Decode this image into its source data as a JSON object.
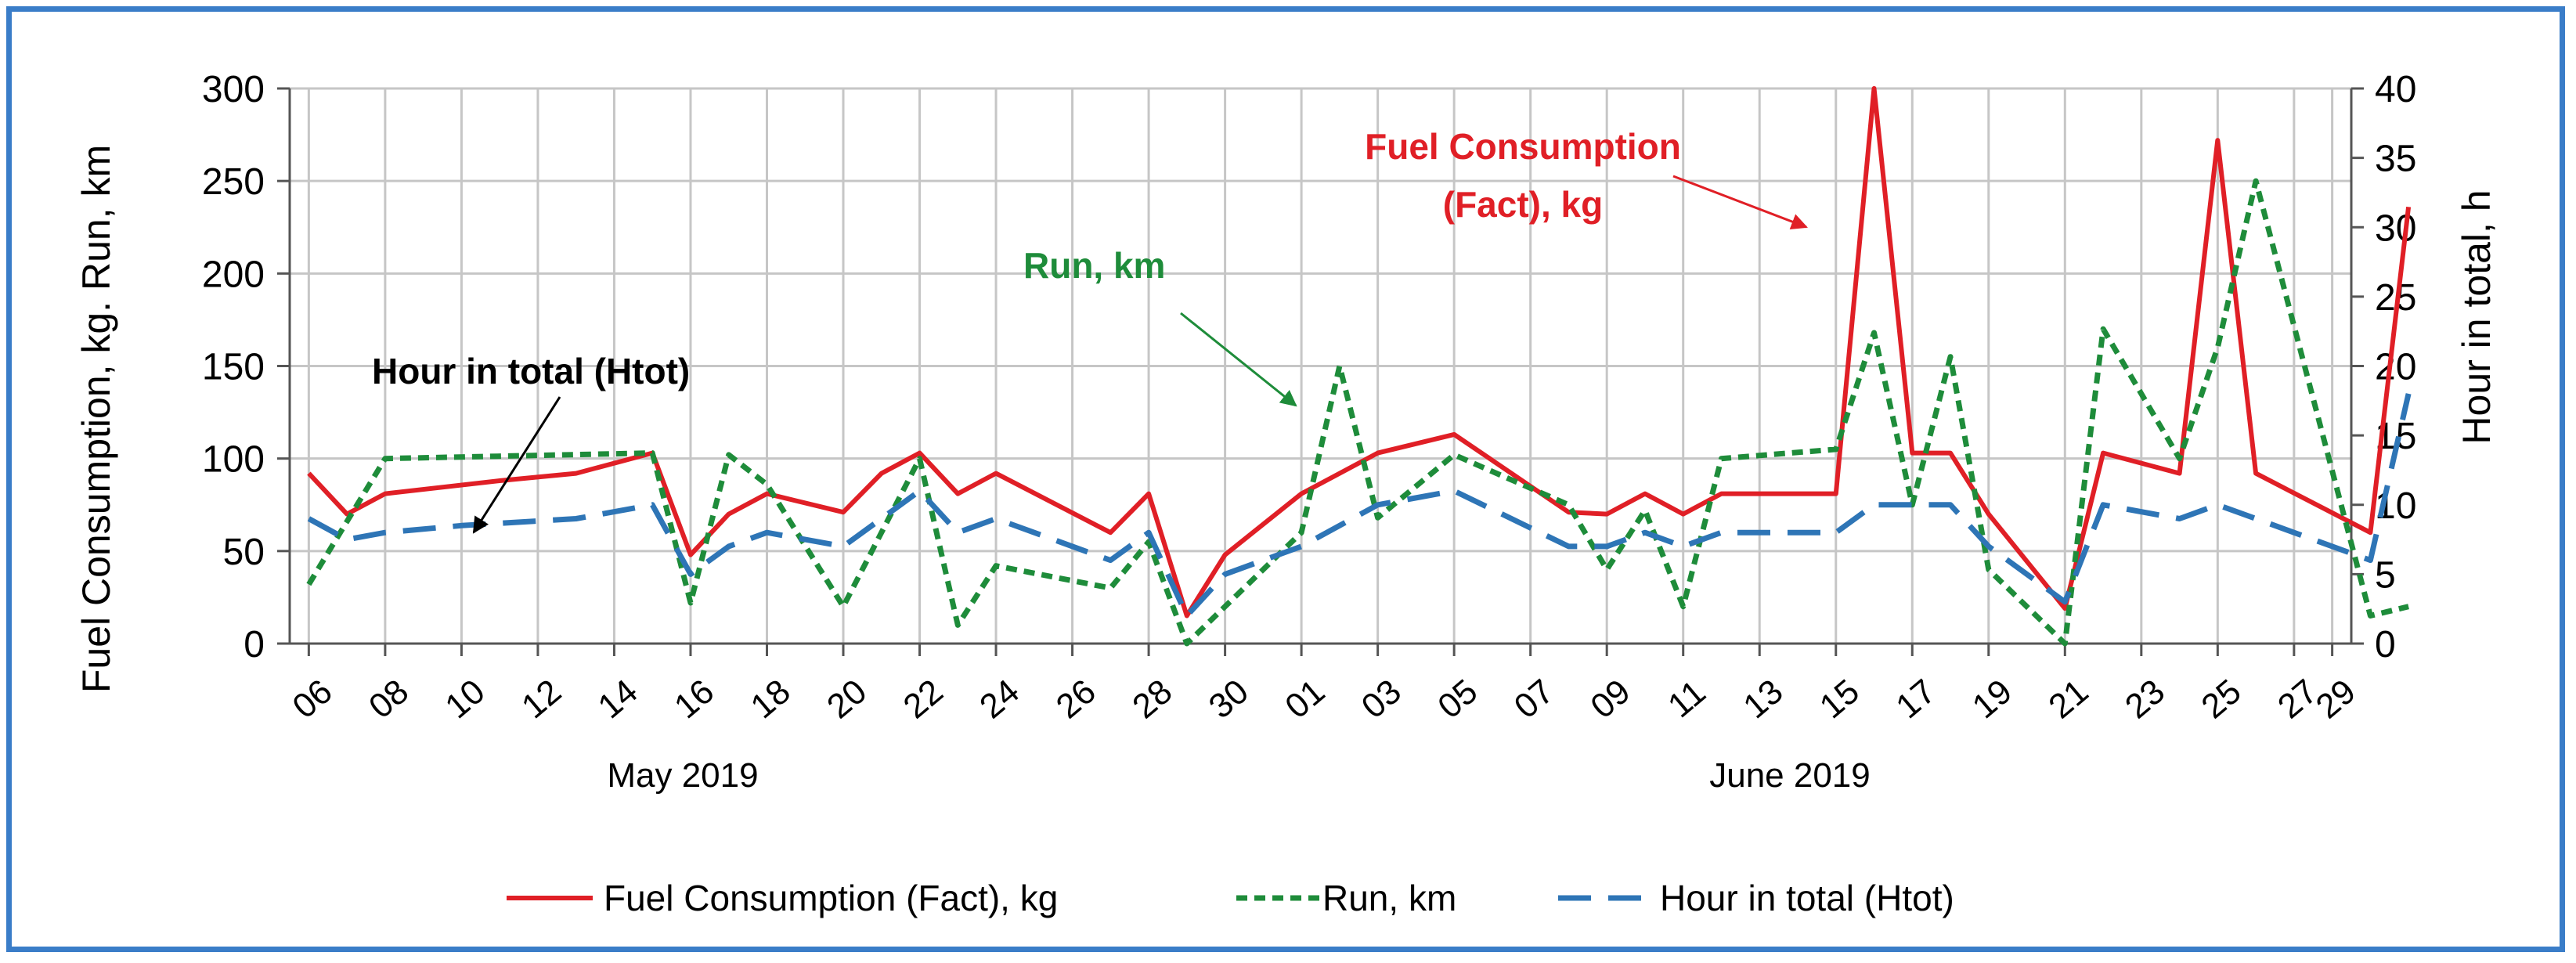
{
  "chart_data": {
    "type": "line",
    "title": "",
    "ylabel_left": "Fuel Consumption, kg. Run, km",
    "ylabel_right": "Hour in total, h",
    "ylim_left": [
      0,
      300
    ],
    "ylim_right": [
      0,
      40
    ],
    "yticks_left": [
      0,
      50,
      100,
      150,
      200,
      250,
      300
    ],
    "yticks_right": [
      0,
      5,
      10,
      15,
      20,
      25,
      30,
      35,
      40
    ],
    "x_index_range": [
      -0.5,
      53.5
    ],
    "xticks": [
      {
        "i": 0,
        "label": "06"
      },
      {
        "i": 2,
        "label": "08"
      },
      {
        "i": 4,
        "label": "10"
      },
      {
        "i": 6,
        "label": "12"
      },
      {
        "i": 8,
        "label": "14"
      },
      {
        "i": 10,
        "label": "16"
      },
      {
        "i": 12,
        "label": "18"
      },
      {
        "i": 14,
        "label": "20"
      },
      {
        "i": 16,
        "label": "22"
      },
      {
        "i": 18,
        "label": "24"
      },
      {
        "i": 20,
        "label": "26"
      },
      {
        "i": 22,
        "label": "28"
      },
      {
        "i": 24,
        "label": "30"
      },
      {
        "i": 26,
        "label": "01"
      },
      {
        "i": 28,
        "label": "03"
      },
      {
        "i": 30,
        "label": "05"
      },
      {
        "i": 32,
        "label": "07"
      },
      {
        "i": 34,
        "label": "09"
      },
      {
        "i": 36,
        "label": "11"
      },
      {
        "i": 38,
        "label": "13"
      },
      {
        "i": 40,
        "label": "15"
      },
      {
        "i": 42,
        "label": "17"
      },
      {
        "i": 44,
        "label": "19"
      },
      {
        "i": 46,
        "label": "21"
      },
      {
        "i": 48,
        "label": "23"
      },
      {
        "i": 50,
        "label": "25"
      },
      {
        "i": 52,
        "label": "27"
      },
      {
        "i": 53,
        "label": "29"
      }
    ],
    "month_labels": [
      {
        "i": 10,
        "label": "May 2019"
      },
      {
        "i": 39,
        "label": "June 2019"
      }
    ],
    "series": [
      {
        "name": "Fuel Consumption (Fact), kg",
        "axis": "left",
        "color": "#e01f26",
        "dash": "solid",
        "points": [
          [
            0,
            92
          ],
          [
            1,
            70
          ],
          [
            2,
            81
          ],
          [
            5,
            88
          ],
          [
            7,
            92
          ],
          [
            9,
            103
          ],
          [
            10,
            48
          ],
          [
            11,
            70
          ],
          [
            12,
            81
          ],
          [
            14,
            71
          ],
          [
            15,
            92
          ],
          [
            16,
            103
          ],
          [
            17,
            81
          ],
          [
            18,
            92
          ],
          [
            21,
            60
          ],
          [
            22,
            81
          ],
          [
            23,
            15
          ],
          [
            24,
            48
          ],
          [
            26,
            81
          ],
          [
            27,
            92
          ],
          [
            28,
            103
          ],
          [
            30,
            113
          ],
          [
            33,
            71
          ],
          [
            34,
            70
          ],
          [
            35,
            81
          ],
          [
            36,
            70
          ],
          [
            37,
            81
          ],
          [
            40,
            81
          ],
          [
            41,
            300
          ],
          [
            42,
            103
          ],
          [
            43,
            103
          ],
          [
            44,
            70
          ],
          [
            46,
            19
          ],
          [
            47,
            103
          ],
          [
            49,
            92
          ],
          [
            50,
            272
          ],
          [
            51,
            92
          ],
          [
            54,
            60
          ],
          [
            55,
            236
          ]
        ]
      },
      {
        "name": "Run, km",
        "axis": "left",
        "color": "#1e8c3a",
        "dash": "short-dash",
        "points": [
          [
            0,
            32
          ],
          [
            2,
            100
          ],
          [
            9,
            103
          ],
          [
            10,
            22
          ],
          [
            11,
            102
          ],
          [
            12,
            86
          ],
          [
            14,
            20
          ],
          [
            16,
            100
          ],
          [
            17,
            10
          ],
          [
            18,
            42
          ],
          [
            21,
            30
          ],
          [
            22,
            55
          ],
          [
            23,
            0
          ],
          [
            26,
            60
          ],
          [
            27,
            150
          ],
          [
            28,
            68
          ],
          [
            30,
            102
          ],
          [
            33,
            75
          ],
          [
            34,
            40
          ],
          [
            35,
            72
          ],
          [
            36,
            20
          ],
          [
            37,
            100
          ],
          [
            40,
            105
          ],
          [
            41,
            168
          ],
          [
            42,
            75
          ],
          [
            43,
            155
          ],
          [
            44,
            40
          ],
          [
            46,
            0
          ],
          [
            47,
            170
          ],
          [
            49,
            100
          ],
          [
            50,
            160
          ],
          [
            51,
            250
          ],
          [
            54,
            15
          ],
          [
            55,
            20
          ]
        ]
      },
      {
        "name": "Hour   in total (Htot)",
        "axis": "right",
        "color": "#2e75b6",
        "dash": "long-dash",
        "points": [
          [
            0,
            9
          ],
          [
            1,
            7.5
          ],
          [
            2,
            8
          ],
          [
            4,
            8.5
          ],
          [
            7,
            9
          ],
          [
            9,
            10
          ],
          [
            10,
            5
          ],
          [
            11,
            7
          ],
          [
            12,
            8
          ],
          [
            14,
            7
          ],
          [
            16,
            11
          ],
          [
            17,
            8
          ],
          [
            18,
            9
          ],
          [
            21,
            6
          ],
          [
            22,
            8
          ],
          [
            23,
            2
          ],
          [
            24,
            5
          ],
          [
            26,
            7
          ],
          [
            28,
            10
          ],
          [
            30,
            11
          ],
          [
            33,
            7
          ],
          [
            34,
            7
          ],
          [
            35,
            8
          ],
          [
            36,
            7
          ],
          [
            37,
            8
          ],
          [
            40,
            8
          ],
          [
            41,
            10
          ],
          [
            42,
            10
          ],
          [
            43,
            10
          ],
          [
            44,
            7
          ],
          [
            46,
            3
          ],
          [
            47,
            10
          ],
          [
            49,
            9
          ],
          [
            50,
            10
          ],
          [
            51,
            9
          ],
          [
            54,
            6
          ],
          [
            55,
            18
          ]
        ]
      }
    ],
    "annotations": [
      {
        "text": "Hour   in total (Htot)",
        "color": "#000000",
        "points_to_series": "Hour   in total (Htot)"
      },
      {
        "text": "Run, km",
        "color": "#1e8c3a",
        "points_to_series": "Run, km"
      },
      {
        "text_lines": [
          "Fuel Consumption",
          "(Fact), kg"
        ],
        "color": "#e01f26",
        "points_to_series": "Fuel Consumption (Fact), kg"
      }
    ],
    "legend_position": "bottom",
    "grid": true
  }
}
